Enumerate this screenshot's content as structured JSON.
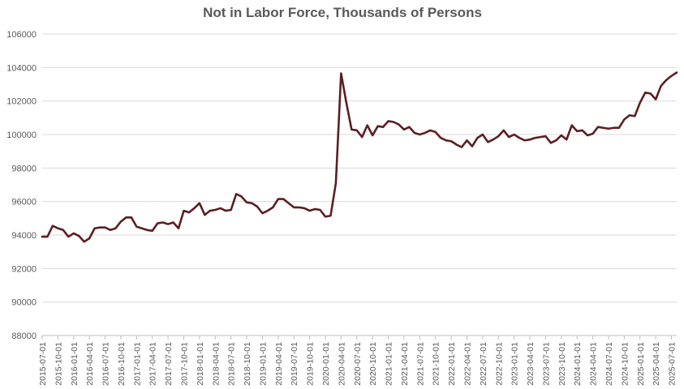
{
  "chart_data": {
    "type": "line",
    "title": "Not in Labor Force, Thousands of Persons",
    "xlabel": "",
    "ylabel": "",
    "ylim": [
      88000,
      106000
    ],
    "yticks": [
      88000,
      90000,
      92000,
      94000,
      96000,
      98000,
      100000,
      102000,
      104000,
      106000
    ],
    "xticks": [
      "2015-07-01",
      "2015-10-01",
      "2016-01-01",
      "2016-04-01",
      "2016-07-01",
      "2016-10-01",
      "2017-01-01",
      "2017-04-01",
      "2017-07-01",
      "2017-10-01",
      "2018-01-01",
      "2018-04-01",
      "2018-07-01",
      "2018-10-01",
      "2019-01-01",
      "2019-04-01",
      "2019-07-01",
      "2019-10-01",
      "2020-01-01",
      "2020-04-01",
      "2020-07-01",
      "2020-10-01",
      "2021-01-01",
      "2021-04-01",
      "2021-07-01",
      "2021-10-01",
      "2022-01-01",
      "2022-04-01",
      "2022-07-01",
      "2022-10-01",
      "2023-01-01",
      "2023-04-01",
      "2023-07-01",
      "2023-10-01",
      "2024-01-01",
      "2024-04-01",
      "2024-07-01",
      "2024-10-01",
      "2025-01-01",
      "2025-04-01",
      "2025-07-01"
    ],
    "grid": true,
    "legend": "none",
    "color": "#5b1f23",
    "series": [
      {
        "name": "",
        "x": [
          "2015-07-01",
          "2015-08-01",
          "2015-09-01",
          "2015-10-01",
          "2015-11-01",
          "2015-12-01",
          "2016-01-01",
          "2016-02-01",
          "2016-03-01",
          "2016-04-01",
          "2016-05-01",
          "2016-06-01",
          "2016-07-01",
          "2016-08-01",
          "2016-09-01",
          "2016-10-01",
          "2016-11-01",
          "2016-12-01",
          "2017-01-01",
          "2017-02-01",
          "2017-03-01",
          "2017-04-01",
          "2017-05-01",
          "2017-06-01",
          "2017-07-01",
          "2017-08-01",
          "2017-09-01",
          "2017-10-01",
          "2017-11-01",
          "2017-12-01",
          "2018-01-01",
          "2018-02-01",
          "2018-03-01",
          "2018-04-01",
          "2018-05-01",
          "2018-06-01",
          "2018-07-01",
          "2018-08-01",
          "2018-09-01",
          "2018-10-01",
          "2018-11-01",
          "2018-12-01",
          "2019-01-01",
          "2019-02-01",
          "2019-03-01",
          "2019-04-01",
          "2019-05-01",
          "2019-06-01",
          "2019-07-01",
          "2019-08-01",
          "2019-09-01",
          "2019-10-01",
          "2019-11-01",
          "2019-12-01",
          "2020-01-01",
          "2020-02-01",
          "2020-03-01",
          "2020-04-01",
          "2020-05-01",
          "2020-06-01",
          "2020-07-01",
          "2020-08-01",
          "2020-09-01",
          "2020-10-01",
          "2020-11-01",
          "2020-12-01",
          "2021-01-01",
          "2021-02-01",
          "2021-03-01",
          "2021-04-01",
          "2021-05-01",
          "2021-06-01",
          "2021-07-01",
          "2021-08-01",
          "2021-09-01",
          "2021-10-01",
          "2021-11-01",
          "2021-12-01",
          "2022-01-01",
          "2022-02-01",
          "2022-03-01",
          "2022-04-01",
          "2022-05-01",
          "2022-06-01",
          "2022-07-01",
          "2022-08-01",
          "2022-09-01",
          "2022-10-01",
          "2022-11-01",
          "2022-12-01",
          "2023-01-01",
          "2023-02-01",
          "2023-03-01",
          "2023-04-01",
          "2023-05-01",
          "2023-06-01",
          "2023-07-01",
          "2023-08-01",
          "2023-09-01",
          "2023-10-01",
          "2023-11-01",
          "2023-12-01",
          "2024-01-01",
          "2024-02-01",
          "2024-03-01",
          "2024-04-01",
          "2024-05-01",
          "2024-06-01",
          "2024-07-01",
          "2024-08-01",
          "2024-09-01",
          "2024-10-01",
          "2024-11-01",
          "2024-12-01",
          "2025-01-01",
          "2025-02-01",
          "2025-03-01",
          "2025-04-01",
          "2025-05-01",
          "2025-06-01",
          "2025-07-01",
          "2025-08-01"
        ],
        "values": [
          93900,
          93900,
          94550,
          94400,
          94300,
          93900,
          94100,
          93950,
          93600,
          93800,
          94400,
          94450,
          94450,
          94300,
          94400,
          94800,
          95050,
          95050,
          94500,
          94400,
          94300,
          94250,
          94700,
          94750,
          94650,
          94750,
          94400,
          95450,
          95350,
          95600,
          95900,
          95200,
          95450,
          95500,
          95600,
          95450,
          95500,
          96450,
          96300,
          95950,
          95900,
          95700,
          95300,
          95450,
          95650,
          96150,
          96150,
          95900,
          95650,
          95650,
          95600,
          95450,
          95550,
          95500,
          95100,
          95150,
          97100,
          103650,
          101900,
          100300,
          100250,
          99850,
          100550,
          99950,
          100500,
          100450,
          100800,
          100750,
          100600,
          100300,
          100450,
          100100,
          100000,
          100100,
          100250,
          100150,
          99800,
          99650,
          99600,
          99400,
          99250,
          99650,
          99300,
          99800,
          100000,
          99550,
          99700,
          99900,
          100250,
          99850,
          100000,
          99800,
          99650,
          99700,
          99800,
          99850,
          99900,
          99500,
          99650,
          99950,
          99700,
          100550,
          100200,
          100250,
          99950,
          100050,
          100450,
          100400,
          100350,
          100400,
          100400,
          100900,
          101150,
          101100,
          101900,
          102500,
          102450,
          102100,
          102900,
          103250,
          103500,
          103700
        ]
      }
    ]
  }
}
